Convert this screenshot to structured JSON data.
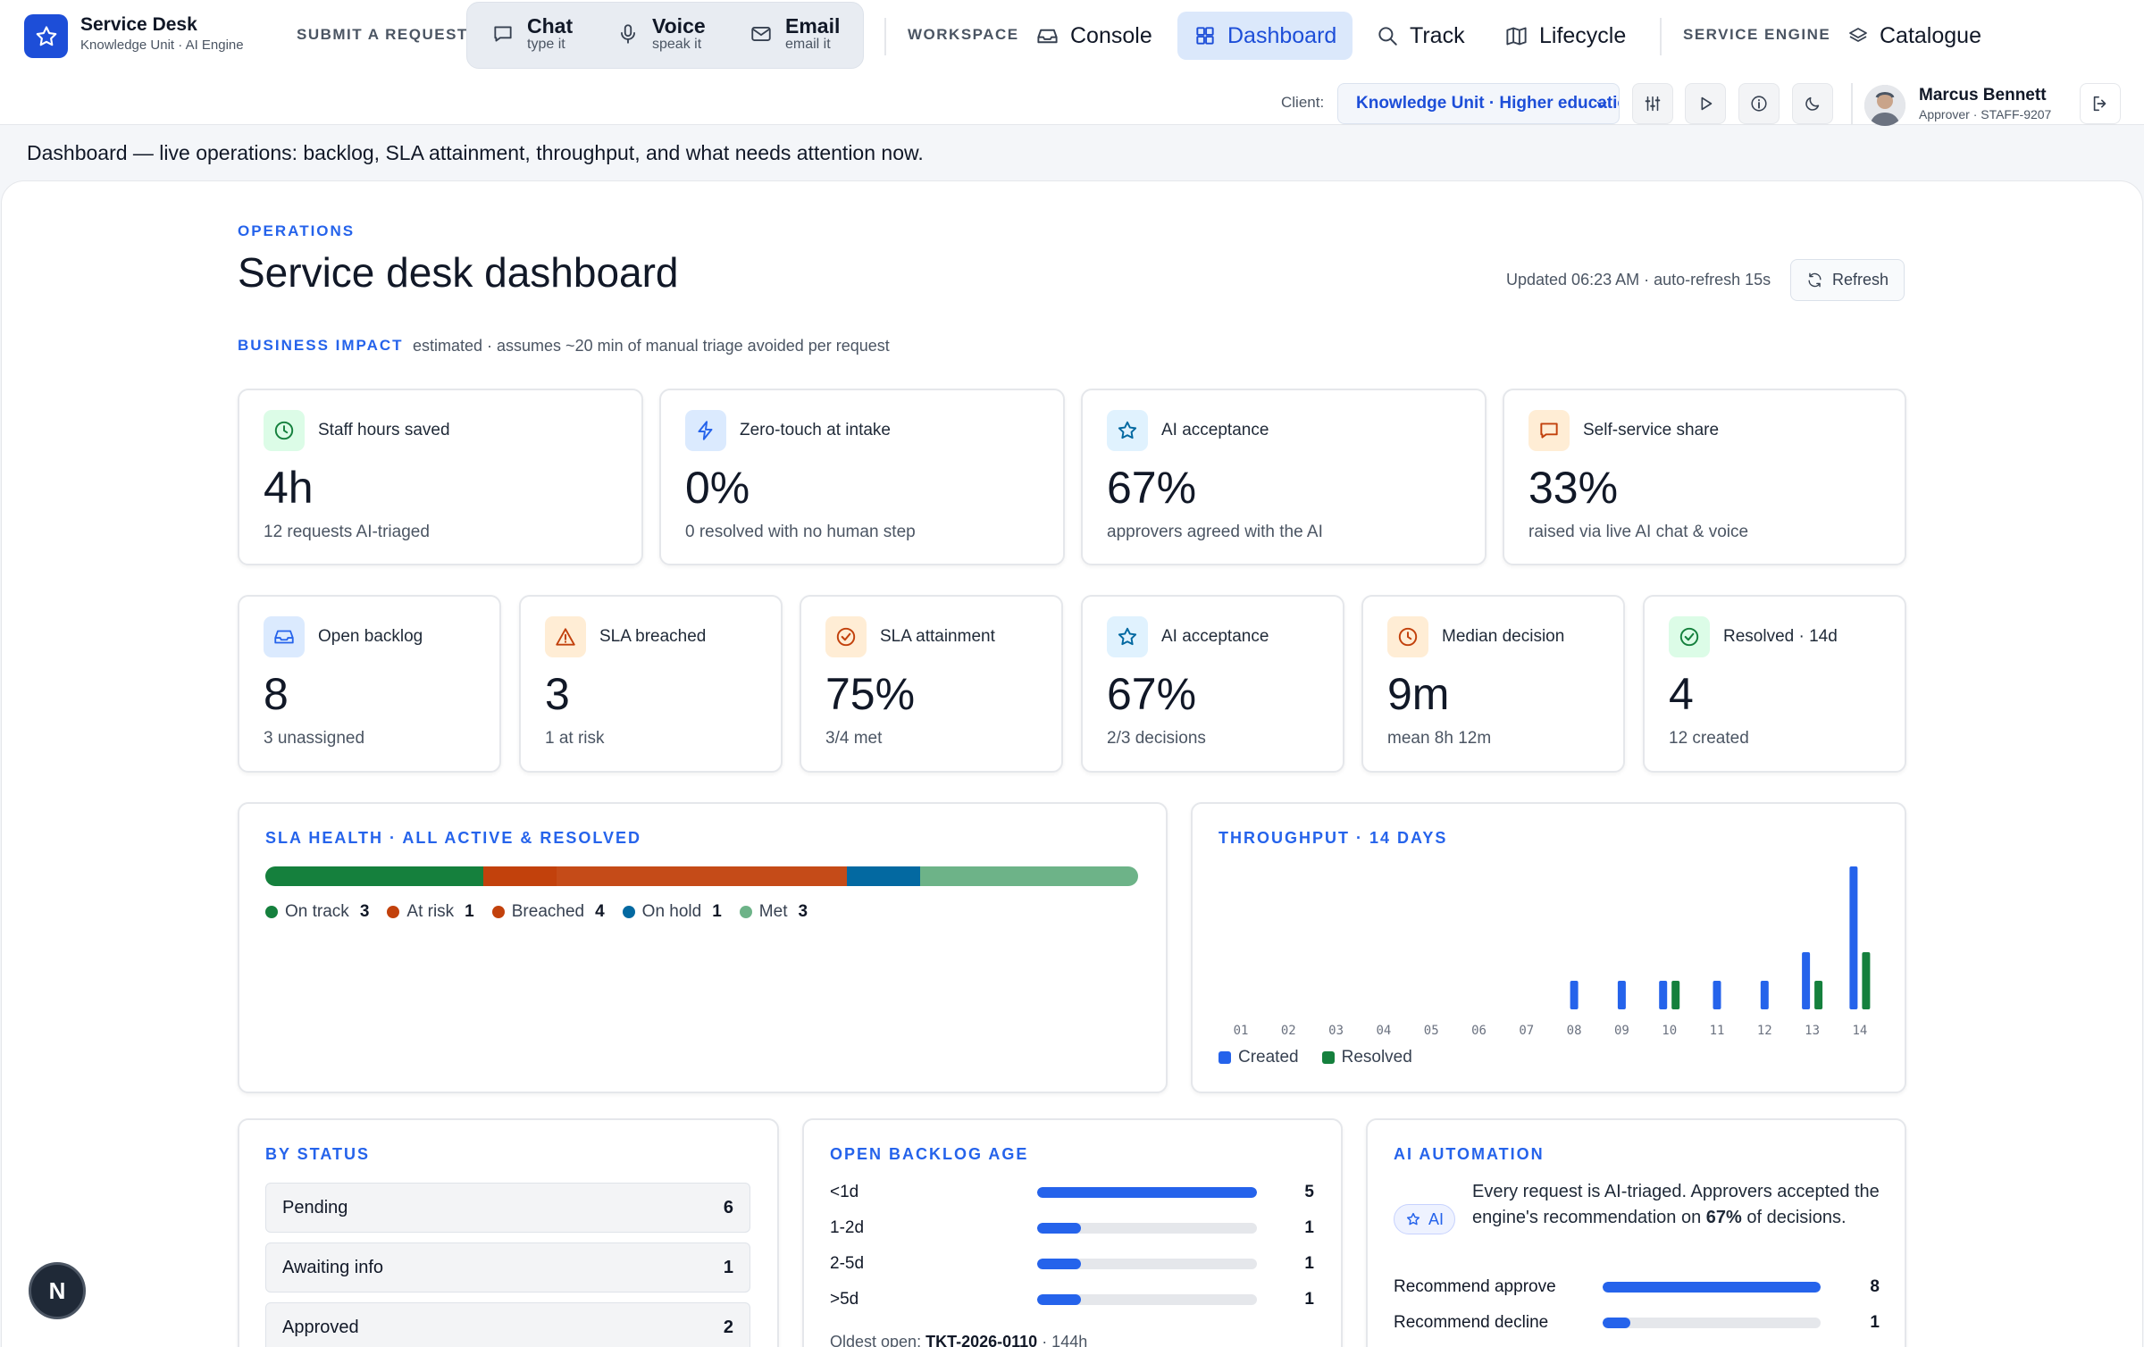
{
  "app": {
    "title": "Service Desk",
    "subtitle": "Knowledge Unit · AI Engine"
  },
  "nav": {
    "submit_label": "SUBMIT A REQUEST",
    "channels": [
      {
        "label": "Chat",
        "sub": "type it",
        "icon": "chat-icon"
      },
      {
        "label": "Voice",
        "sub": "speak it",
        "icon": "mic-icon"
      },
      {
        "label": "Email",
        "sub": "email it",
        "icon": "mail-icon"
      }
    ],
    "workspace_label": "WORKSPACE",
    "workspace_items": [
      {
        "label": "Console",
        "icon": "inbox-icon"
      },
      {
        "label": "Dashboard",
        "icon": "grid-icon",
        "active": true
      },
      {
        "label": "Track",
        "icon": "search-icon"
      },
      {
        "label": "Lifecycle",
        "icon": "map-icon"
      }
    ],
    "engine_label": "SERVICE ENGINE",
    "engine_items": [
      {
        "label": "Catalogue",
        "icon": "layers-icon"
      }
    ]
  },
  "client": {
    "label": "Client:",
    "value": "Knowledge Unit · Higher education"
  },
  "user": {
    "name": "Marcus Bennett",
    "role": "Approver · STAFF-9207"
  },
  "banner": "Dashboard — live operations: backlog, SLA attainment, throughput, and what needs attention now.",
  "header": {
    "eyebrow": "OPERATIONS",
    "title": "Service desk dashboard",
    "updated": "Updated 06:23 AM · auto-refresh 15s",
    "refresh_label": "Refresh"
  },
  "business_impact": {
    "label": "BUSINESS IMPACT",
    "note": "estimated · assumes ~20 min of manual triage avoided per request",
    "cards": [
      {
        "label": "Staff hours saved",
        "value": "4h",
        "sub": "12 requests AI-triaged",
        "icon": "clock-icon",
        "color": "#15803d"
      },
      {
        "label": "Zero-touch at intake",
        "value": "0%",
        "sub": "0 resolved with no human step",
        "icon": "bolt-icon",
        "color": "#2563eb"
      },
      {
        "label": "AI acceptance",
        "value": "67%",
        "sub": "approvers agreed with the AI",
        "icon": "star-icon",
        "color": "#0369a1"
      },
      {
        "label": "Self-service share",
        "value": "33%",
        "sub": "raised via live AI chat & voice",
        "icon": "message-icon",
        "color": "#c2410c"
      }
    ]
  },
  "ops_kpis": [
    {
      "label": "Open backlog",
      "value": "8",
      "sub": "3 unassigned",
      "icon": "inbox-icon",
      "color": "#2563eb"
    },
    {
      "label": "SLA breached",
      "value": "3",
      "sub": "1 at risk",
      "icon": "warning-icon",
      "color": "#c2410c"
    },
    {
      "label": "SLA attainment",
      "value": "75%",
      "sub": "3/4 met",
      "icon": "check-circle-icon",
      "color": "#c2410c"
    },
    {
      "label": "AI acceptance",
      "value": "67%",
      "sub": "2/3 decisions",
      "icon": "star-icon",
      "color": "#0369a1"
    },
    {
      "label": "Median decision",
      "value": "9m",
      "sub": "mean 8h 12m",
      "icon": "clock-icon",
      "color": "#c2410c"
    },
    {
      "label": "Resolved · 14d",
      "value": "4",
      "sub": "12 created",
      "icon": "check-circle-icon",
      "color": "#15803d"
    }
  ],
  "sla_health": {
    "title": "SLA HEALTH · ALL ACTIVE & RESOLVED",
    "segments": [
      {
        "name": "On track",
        "count": "3",
        "color": "#15803d"
      },
      {
        "name": "At risk",
        "count": "1",
        "color": "#c2410c"
      },
      {
        "name": "Breached",
        "count": "4",
        "color": "#c2410c"
      },
      {
        "name": "On hold",
        "count": "1",
        "color": "#0369a1"
      },
      {
        "name": "Met",
        "count": "3",
        "color": "#6db388"
      }
    ]
  },
  "chart_data": {
    "type": "bar",
    "title": "THROUGHPUT · 14 DAYS",
    "categories": [
      "01",
      "02",
      "03",
      "04",
      "05",
      "06",
      "07",
      "08",
      "09",
      "10",
      "11",
      "12",
      "13",
      "14"
    ],
    "series": [
      {
        "name": "Created",
        "color": "#2563eb",
        "values": [
          0,
          0,
          0,
          0,
          0,
          0,
          0,
          1,
          1,
          1,
          1,
          1,
          2,
          5
        ]
      },
      {
        "name": "Resolved",
        "color": "#15803d",
        "values": [
          0,
          0,
          0,
          0,
          0,
          0,
          0,
          0,
          0,
          1,
          0,
          0,
          1,
          2
        ]
      }
    ],
    "ylim": [
      0,
      5
    ],
    "legend": "bottom-left"
  },
  "by_status": {
    "title": "BY STATUS",
    "rows": [
      {
        "label": "Pending",
        "count": "6"
      },
      {
        "label": "Awaiting info",
        "count": "1"
      },
      {
        "label": "Approved",
        "count": "2"
      }
    ]
  },
  "backlog_age": {
    "title": "OPEN BACKLOG AGE",
    "rows": [
      {
        "label": "<1d",
        "count": "5",
        "value": 5
      },
      {
        "label": "1-2d",
        "count": "1",
        "value": 1
      },
      {
        "label": "2-5d",
        "count": "1",
        "value": 1
      },
      {
        "label": ">5d",
        "count": "1",
        "value": 1
      }
    ],
    "max": 5,
    "oldest_label": "Oldest open:",
    "oldest_ticket": "TKT-2026-0110",
    "oldest_age": "· 144h"
  },
  "ai_automation": {
    "title": "AI AUTOMATION",
    "badge": "AI",
    "text_before": "Every request is AI-triaged. Approvers accepted the engine's recommendation on",
    "text_pct": "67%",
    "text_after": "of decisions.",
    "rows": [
      {
        "label": "Recommend approve",
        "count": "8",
        "value": 8
      },
      {
        "label": "Recommend decline",
        "count": "1",
        "value": 1
      }
    ],
    "max": 8
  },
  "fab_label": "N"
}
